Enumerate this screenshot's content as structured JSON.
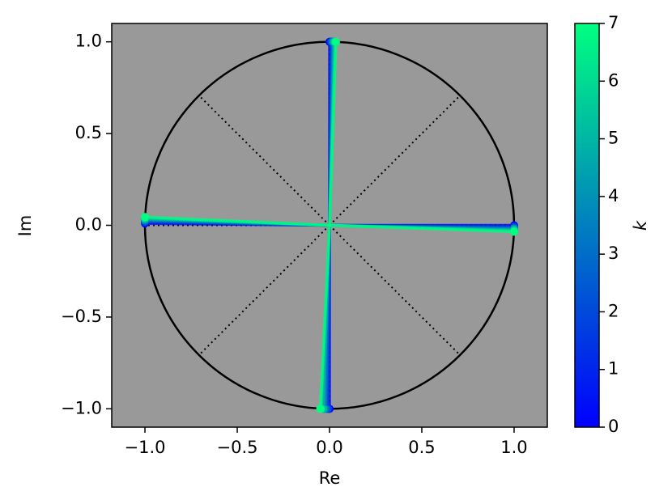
{
  "chart_data": {
    "type": "scatter",
    "x_label": "Re",
    "y_label": "Im",
    "xlim": [
      -1.18,
      1.18
    ],
    "ylim": [
      -1.1,
      1.1
    ],
    "xticks": [
      {
        "value": -1,
        "label": "−1.0"
      },
      {
        "value": -0.5,
        "label": "−0.5"
      },
      {
        "value": 0,
        "label": "0.0"
      },
      0.5,
      {
        "value": 1,
        "label": "1.0"
      }
    ],
    "yticks": [
      {
        "value": -1,
        "label": "−1.0"
      },
      {
        "value": -0.5,
        "label": "−0.5"
      },
      {
        "value": 0,
        "label": "0.0"
      },
      0.5,
      {
        "value": 1,
        "label": "1.0"
      }
    ],
    "background": "#999999",
    "series": [
      {
        "k": 0,
        "color": "#0000ff",
        "x": [
          1,
          0,
          -1,
          0
        ],
        "y": [
          0,
          1,
          0.01,
          -1
        ]
      },
      {
        "k": 1,
        "color": "#0024ed",
        "x": [
          1,
          0.005,
          -1,
          -0.005
        ],
        "y": [
          -0.005,
          1,
          0.015,
          -1
        ]
      },
      {
        "k": 2,
        "color": "#0049db",
        "x": [
          1,
          0.01,
          -1,
          -0.01
        ],
        "y": [
          -0.01,
          1,
          0.02,
          -1
        ]
      },
      {
        "k": 3,
        "color": "#006dc8",
        "x": [
          1,
          0.015,
          -1,
          -0.02
        ],
        "y": [
          -0.015,
          1,
          0.025,
          -1
        ]
      },
      {
        "k": 4,
        "color": "#0092b6",
        "x": [
          1,
          0.02,
          -1,
          -0.03
        ],
        "y": [
          -0.02,
          1,
          0.03,
          -1
        ]
      },
      {
        "k": 5,
        "color": "#00b6a4",
        "x": [
          1,
          0.025,
          -1,
          -0.035
        ],
        "y": [
          -0.025,
          1,
          0.035,
          -1
        ]
      },
      {
        "k": 6,
        "color": "#00db92",
        "x": [
          1,
          0.03,
          -1,
          -0.045
        ],
        "y": [
          -0.03,
          1,
          0.04,
          -1
        ]
      },
      {
        "k": 7,
        "color": "#00ff80",
        "x": [
          1,
          0.035,
          -1,
          -0.05
        ],
        "y": [
          -0.035,
          1,
          0.045,
          -1
        ]
      }
    ],
    "colorbar": {
      "label": "k",
      "clim": [
        0,
        7
      ],
      "ticks": [
        0,
        1,
        2,
        3,
        4,
        5,
        6,
        7
      ],
      "colors": [
        "#0000ff",
        "#00ff80"
      ]
    }
  }
}
